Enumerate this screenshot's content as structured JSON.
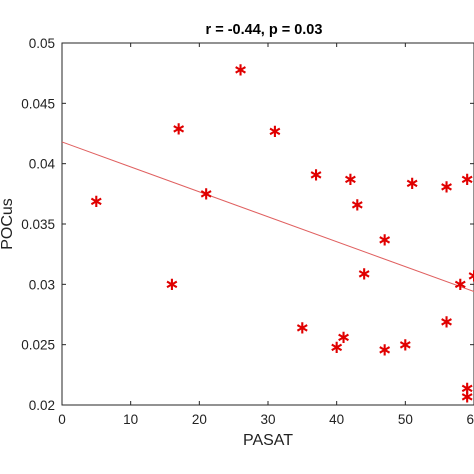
{
  "chart_data": {
    "type": "scatter",
    "title": "r = -0.44, p = 0.03",
    "xlabel": "PASAT",
    "ylabel": "POCus",
    "xlim": [
      0,
      60
    ],
    "ylim": [
      0.02,
      0.05
    ],
    "xticks": [
      "0",
      "10",
      "20",
      "30",
      "40",
      "50",
      "60"
    ],
    "yticks": [
      "0.02",
      "0.025",
      "0.03",
      "0.035",
      "0.04",
      "0.045",
      "0.05"
    ],
    "grid": false,
    "marker_color": "#e00000",
    "fit_line_color": "#e06060",
    "fit_line": {
      "x": [
        0,
        60
      ],
      "y": [
        0.0418,
        0.0294
      ]
    },
    "series": [
      {
        "values": [
          {
            "x": 5,
            "y": 0.037
          },
          {
            "x": 16,
            "y": 0.0301
          },
          {
            "x": 17,
            "y": 0.043
          },
          {
            "x": 21,
            "y": 0.0376
          },
          {
            "x": 26,
            "y": 0.0479
          },
          {
            "x": 31,
            "y": 0.0428
          },
          {
            "x": 35,
            "y": 0.0265
          },
          {
            "x": 37,
            "y": 0.0392
          },
          {
            "x": 40,
            "y": 0.0249
          },
          {
            "x": 41,
            "y": 0.0257
          },
          {
            "x": 42,
            "y": 0.0388
          },
          {
            "x": 43,
            "y": 0.0367
          },
          {
            "x": 44,
            "y": 0.031
          },
          {
            "x": 47,
            "y": 0.0338
          },
          {
            "x": 47,
            "y": 0.0247
          },
          {
            "x": 50,
            "y": 0.0251
          },
          {
            "x": 51,
            "y": 0.0385
          },
          {
            "x": 56,
            "y": 0.0382
          },
          {
            "x": 56,
            "y": 0.027
          },
          {
            "x": 58,
            "y": 0.0301
          },
          {
            "x": 59,
            "y": 0.0388
          },
          {
            "x": 59,
            "y": 0.0215
          },
          {
            "x": 59,
            "y": 0.0208
          },
          {
            "x": 60,
            "y": 0.0308
          }
        ]
      }
    ]
  }
}
